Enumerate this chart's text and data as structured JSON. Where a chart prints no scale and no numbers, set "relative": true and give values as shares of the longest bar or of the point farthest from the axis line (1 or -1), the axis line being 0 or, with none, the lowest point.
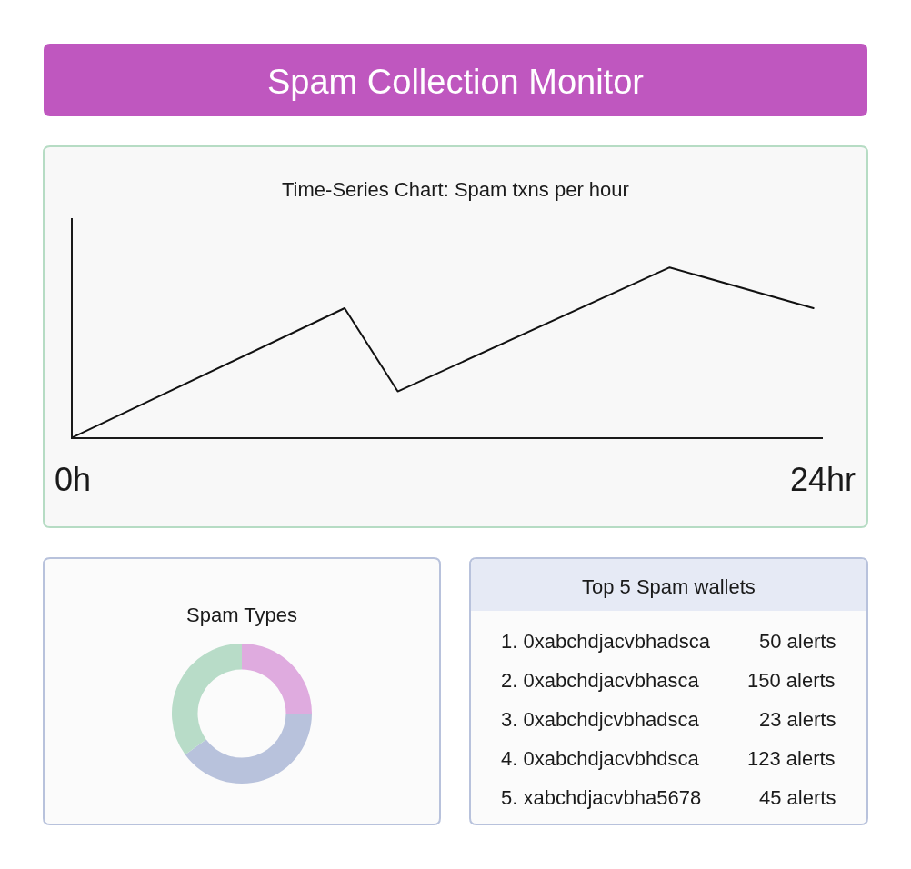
{
  "chart_data": [
    {
      "type": "other",
      "title": "Spam Collection Monitor"
    },
    {
      "type": "line",
      "title": "Time-Series Chart: Spam txns per hour",
      "relative": true,
      "x": [
        0,
        8.7,
        10.4,
        19.1,
        23.7
      ],
      "values": [
        0,
        0.76,
        0.27,
        1,
        0.76
      ],
      "color": "#111111",
      "xlim": [
        0,
        24
      ],
      "xticks": [
        {
          "value": 0,
          "label": "0h"
        },
        {
          "value": 24,
          "label": "24hr"
        }
      ],
      "tick_labels": "x"
    },
    {
      "type": "donut",
      "title": "Spam Types",
      "categories": [
        null,
        null,
        null
      ],
      "values": [
        25,
        40,
        35
      ],
      "colors": [
        "#dfabdf",
        "#b8c2dc",
        "#b8dcc8"
      ]
    },
    {
      "type": "other",
      "title": "Top 5 Spam wallets",
      "annotations": [
        "1. 0xabchdjacvbhadsca",
        "50 alerts",
        "2. 0xabchdjacvbhasca",
        "150 alerts",
        "3. 0xabchdjcvbhadsca",
        "23 alerts",
        "4. 0xabchdjacvbhdsca",
        "123 alerts",
        "5. xabchdjacvbha5678",
        "45 alerts"
      ]
    }
  ]
}
